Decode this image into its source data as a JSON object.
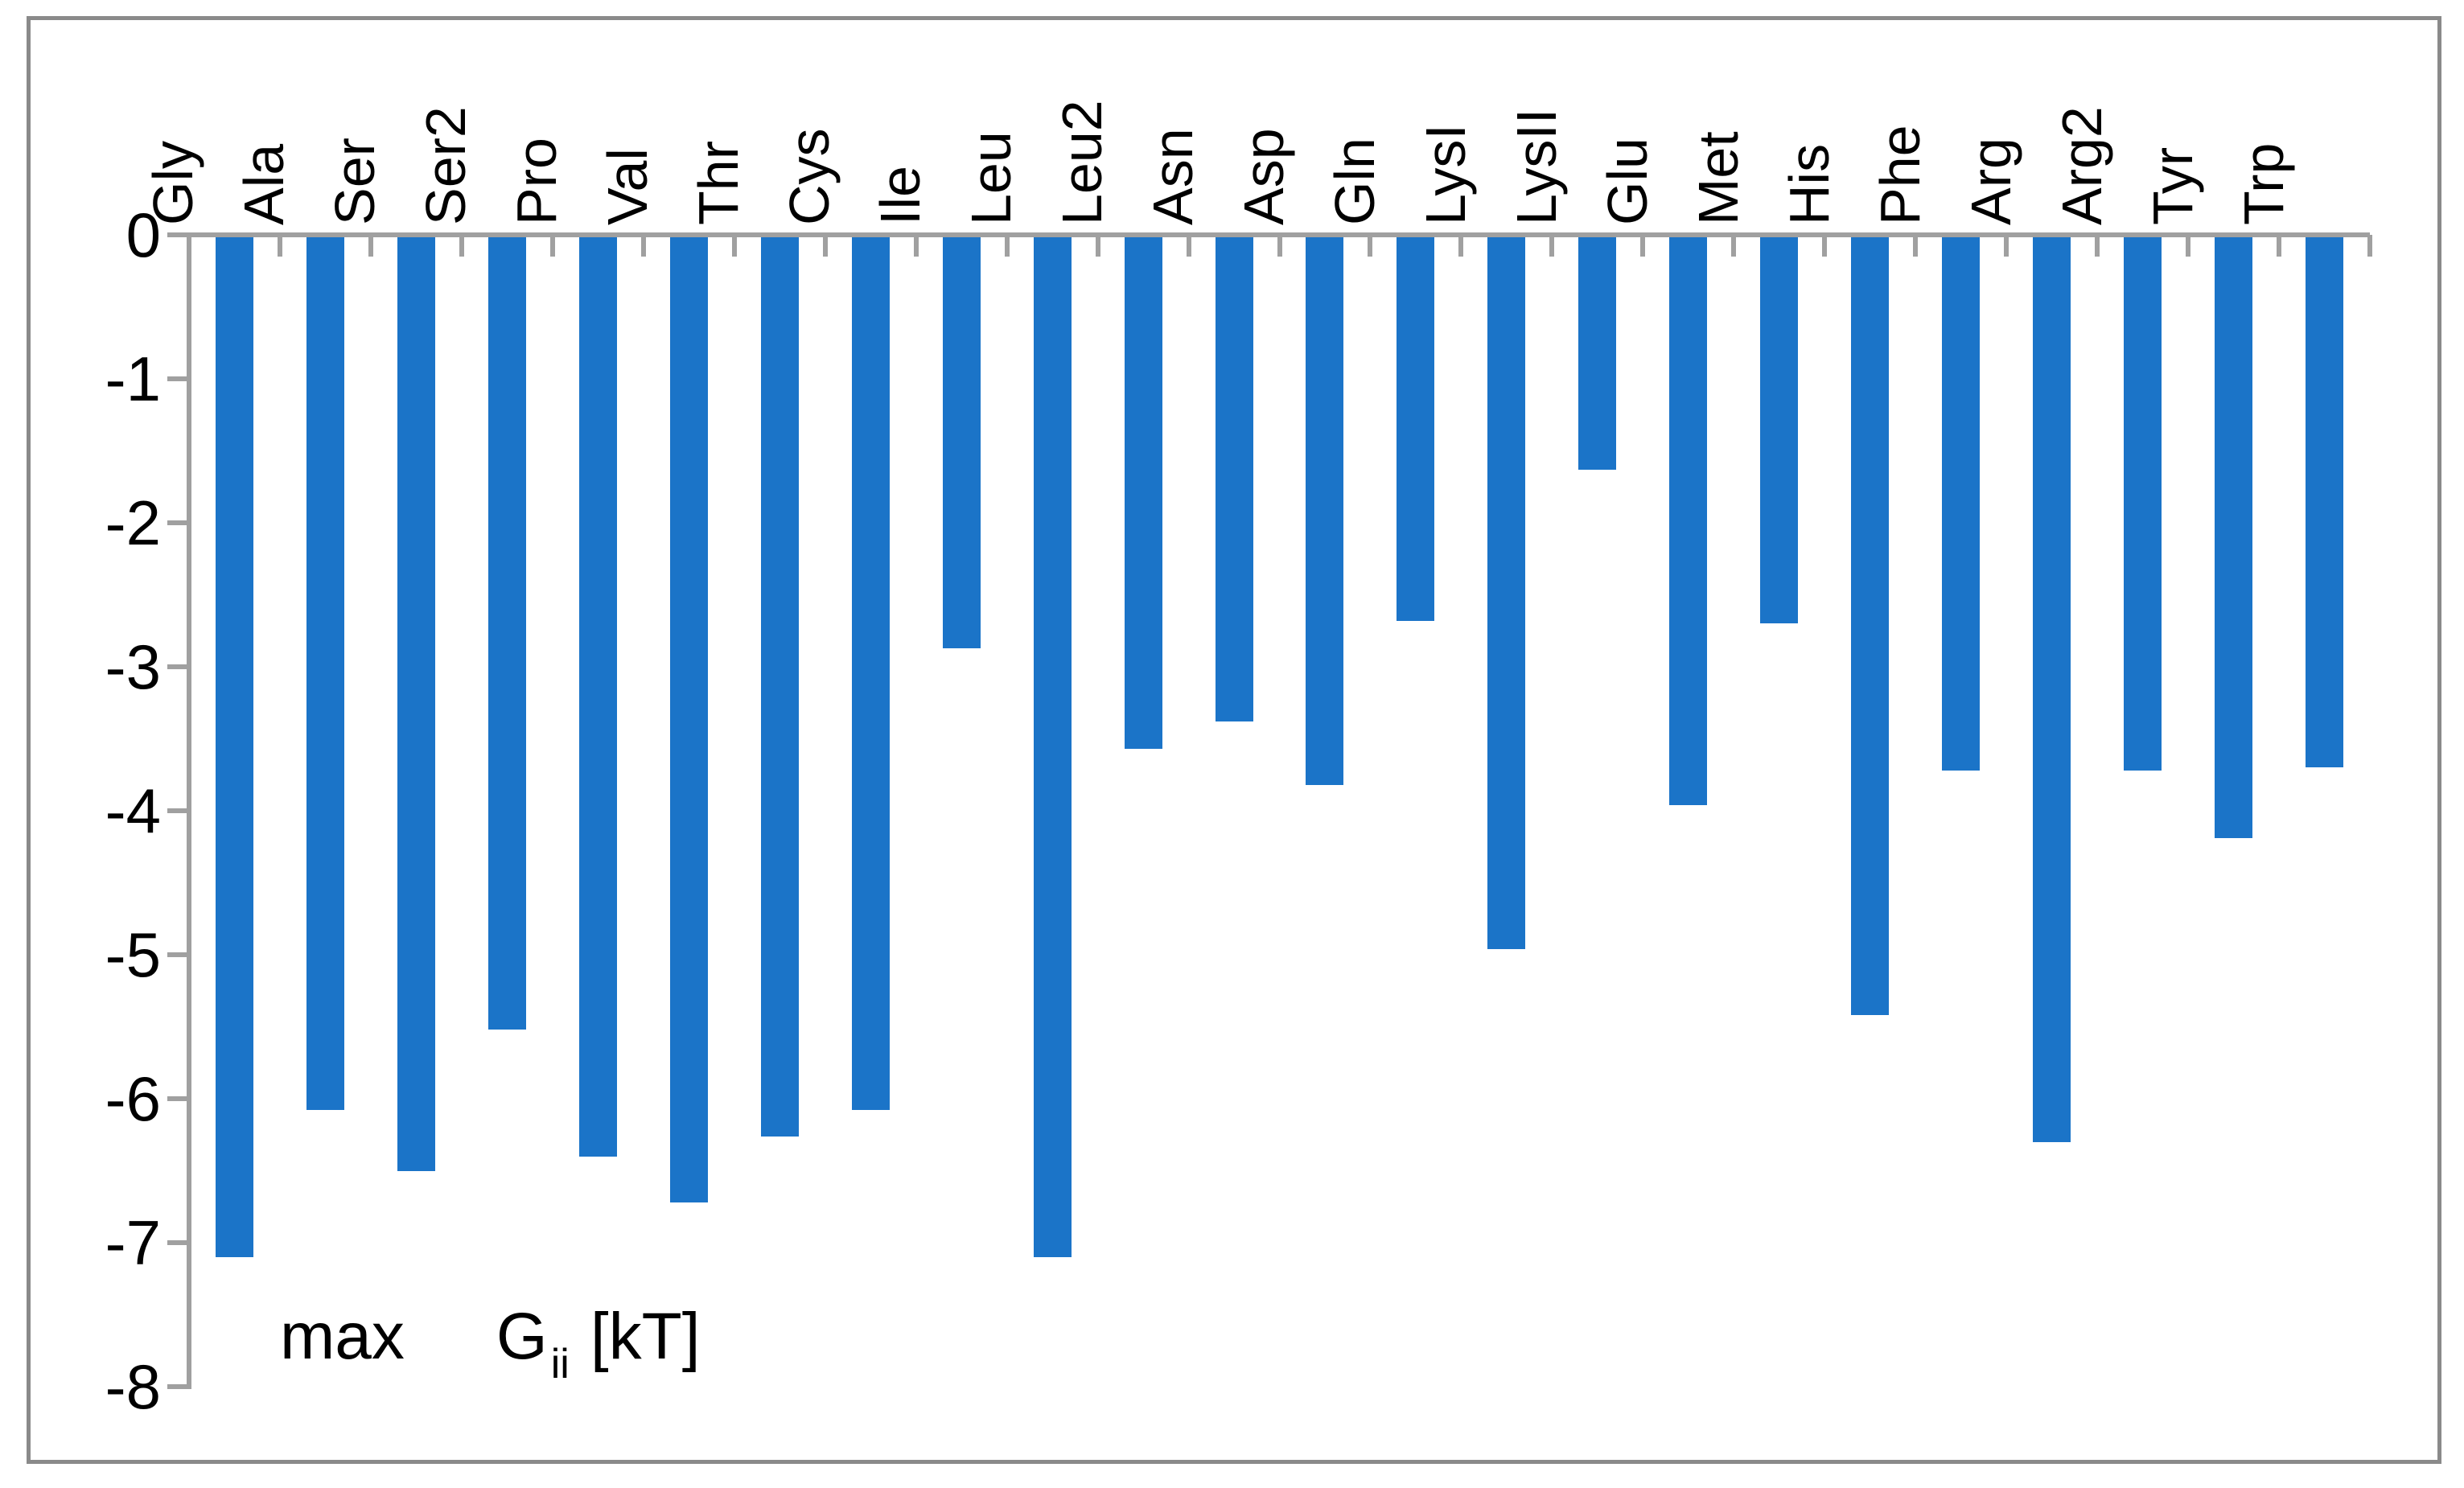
{
  "chart_data": {
    "type": "bar",
    "title": "",
    "xlabel": "",
    "ylabel_annotation": "max Gii [kT]",
    "categories": [
      "Gly",
      "Ala",
      "Ser",
      "Ser2",
      "Pro",
      "Val",
      "Thr",
      "Cys",
      "Ile",
      "Leu",
      "Leu2",
      "Asn",
      "Asp",
      "Gln",
      "LysI",
      "LysII",
      "Glu",
      "Met",
      "His",
      "Phe",
      "Arg",
      "Arg2",
      "Tyr",
      "Trp"
    ],
    "values": [
      -7.1,
      -6.08,
      -6.5,
      -5.52,
      -6.4,
      -6.72,
      -6.26,
      -6.08,
      -2.87,
      -7.1,
      -3.57,
      -3.38,
      -3.82,
      -2.68,
      -4.96,
      -1.63,
      -3.96,
      -2.7,
      -5.42,
      -3.72,
      -6.3,
      -3.72,
      -4.19,
      -3.7
    ],
    "ylim": [
      0,
      -8
    ],
    "yticks": [
      0,
      -1,
      -2,
      -3,
      -4,
      -5,
      -6,
      -7,
      -8
    ],
    "ytick_labels": [
      "0",
      "-1",
      "-2",
      "-3",
      "-4",
      "-5",
      "-6",
      "-7",
      "-8"
    ],
    "x_labels_position": "top-rotated-90",
    "grid": false,
    "legend_position": "none",
    "bar_color": "#1B74C8",
    "axis_color": "#A0A0A0",
    "frame_color": "#8A8A8A",
    "text_color": "#000000",
    "annotation": {
      "prefix": "max",
      "symbol": "G",
      "subscript": "ii",
      "unit": "[kT]"
    }
  }
}
